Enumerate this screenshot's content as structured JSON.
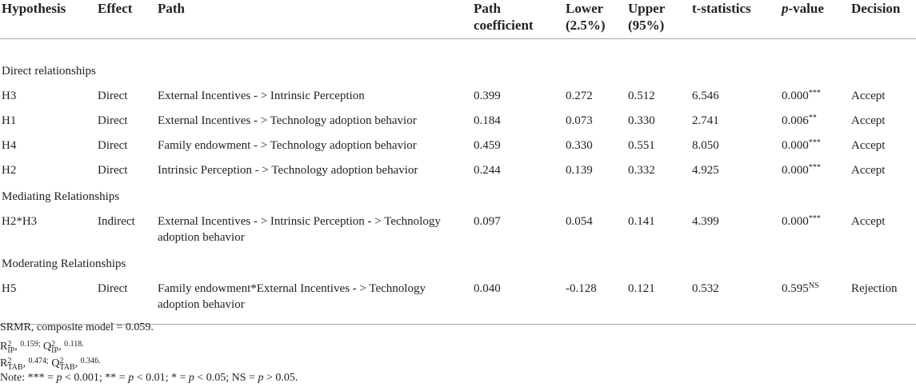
{
  "table": {
    "columns": [
      "Hypothesis",
      "Effect",
      "Path",
      "Path coefficient",
      "Lower (2.5%)",
      "Upper (95%)",
      "t-statistics",
      "p-value",
      "Decision"
    ],
    "sections": [
      {
        "label": "Direct relationships",
        "rows": [
          {
            "cells": [
              "H3",
              "Direct",
              "External Incentives - > Intrinsic Perception",
              "0.399",
              "0.272",
              "0.512",
              "6.546",
              "0.000",
              "Accept"
            ],
            "p_mark": "***"
          },
          {
            "cells": [
              "H1",
              "Direct",
              "External Incentives - > Technology adoption behavior",
              "0.184",
              "0.073",
              "0.330",
              "2.741",
              "0.006",
              "Accept"
            ],
            "p_mark": "**"
          },
          {
            "cells": [
              "H4",
              "Direct",
              "Family endowment - > Technology adoption behavior",
              "0.459",
              "0.330",
              "0.551",
              "8.050",
              "0.000",
              "Accept"
            ],
            "p_mark": "***"
          },
          {
            "cells": [
              "H2",
              "Direct",
              "Intrinsic Perception - > Technology adoption behavior",
              "0.244",
              "0.139",
              "0.332",
              "4.925",
              "0.000",
              "Accept"
            ],
            "p_mark": "***"
          }
        ]
      },
      {
        "label": "Mediating Relationships",
        "rows": [
          {
            "cells": [
              "H2*H3",
              "Indirect",
              "External Incentives - > Intrinsic Perception - > Technology adoption behavior",
              "0.097",
              "0.054",
              "0.141",
              "4.399",
              "0.000",
              "Accept"
            ],
            "p_mark": "***"
          }
        ]
      },
      {
        "label": "Moderating Relationships",
        "rows": [
          {
            "cells": [
              "H5",
              "Direct",
              "Family endowment*External Incentives - > Technology adoption behavior",
              "0.040",
              "-0.128",
              "0.121",
              "0.532",
              "0.595",
              "Rejection"
            ],
            "p_mark": "NS"
          }
        ]
      }
    ]
  },
  "notes": [
    [
      {
        "text": "SRMR, composite model = 0.059.",
        "kind": "normal"
      }
    ],
    [
      {
        "text": "R",
        "kind": "normal"
      },
      {
        "sup": "2",
        "sub": "IP",
        "kind": "stack"
      },
      {
        "text": ",",
        "kind": "normal"
      },
      {
        "text": "0.159;",
        "kind": "small"
      },
      {
        "text": "Q",
        "kind": "normal"
      },
      {
        "sup": "2",
        "sub": "IP",
        "kind": "stack"
      },
      {
        "text": ",",
        "kind": "normal"
      },
      {
        "text": "0.118.",
        "kind": "small"
      }
    ],
    [
      {
        "text": "R",
        "kind": "normal"
      },
      {
        "sup": "2",
        "sub": "TAB",
        "kind": "stack"
      },
      {
        "text": ",",
        "kind": "normal"
      },
      {
        "text": "0.474;",
        "kind": "small"
      },
      {
        "text": "Q",
        "kind": "normal"
      },
      {
        "sup": "2",
        "sub": "TAB",
        "kind": "stack"
      },
      {
        "text": ",",
        "kind": "normal"
      },
      {
        "text": "0.346.",
        "kind": "small"
      }
    ],
    [
      {
        "text": "Note: *** =",
        "kind": "normal"
      },
      {
        "text": "p",
        "kind": "italic"
      },
      {
        "text": "< 0.001; ** =",
        "kind": "normal"
      },
      {
        "text": "p",
        "kind": "italic"
      },
      {
        "text": "< 0.01; * =",
        "kind": "normal"
      },
      {
        "text": "p",
        "kind": "italic"
      },
      {
        "text": "< 0.05; NS =",
        "kind": "normal"
      },
      {
        "text": "p",
        "kind": "italic"
      },
      {
        "text": "> 0.05.",
        "kind": "normal"
      }
    ]
  ]
}
